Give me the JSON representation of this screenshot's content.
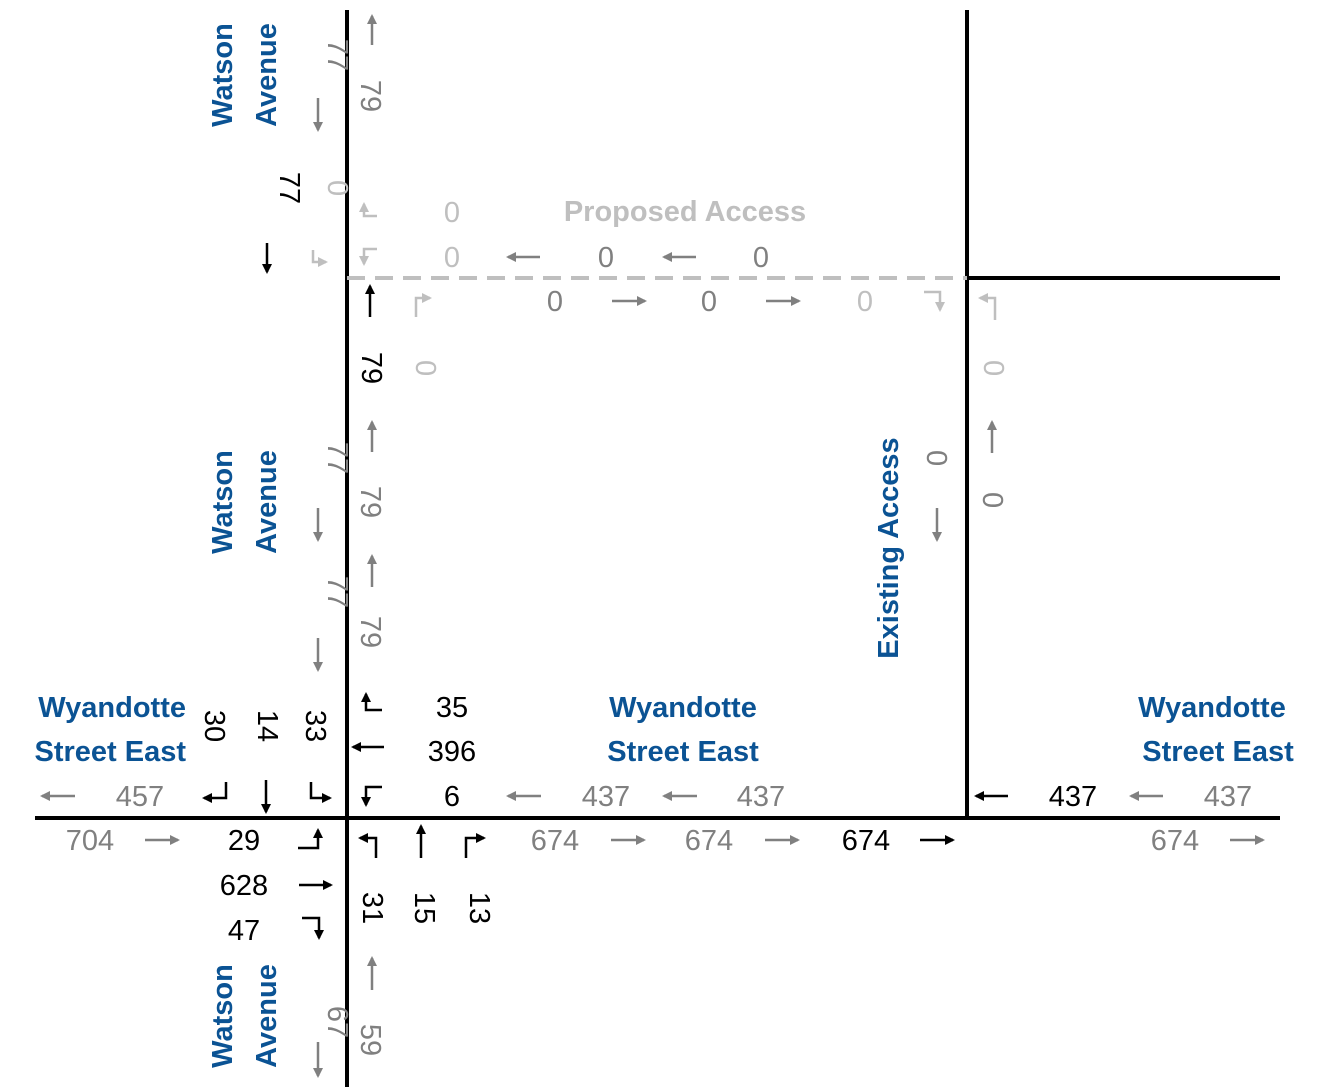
{
  "colors": {
    "road": "#000000",
    "street_label": "#0b5394",
    "existing_volume": "#000000",
    "link_volume": "#808080",
    "proposed": "#bfbfbf"
  },
  "streets": {
    "watson_top": [
      "Watson",
      "Avenue"
    ],
    "watson_middle": [
      "Watson",
      "Avenue"
    ],
    "watson_bottom": [
      "Watson",
      "Avenue"
    ],
    "wyandotte_left": [
      "Wyandotte",
      "Street East"
    ],
    "wyandotte_middle": [
      "Wyandotte",
      "Street East"
    ],
    "wyandotte_right": [
      "Wyandotte",
      "Street East"
    ],
    "proposed_access": "Proposed Access",
    "existing_access": "Existing Access"
  },
  "volumes": {
    "watson_north_link": {
      "southbound": "77",
      "northbound": "79"
    },
    "proposed_access_sb": {
      "through": "77",
      "right": "0"
    },
    "proposed_access_nb": {
      "through": "79",
      "left": "0"
    },
    "proposed_access_wb": {
      "right": "0",
      "left": "0"
    },
    "proposed_access_wb_link": [
      "0",
      "0"
    ],
    "proposed_access_eb_link": [
      "0",
      "0",
      "0"
    ],
    "existing_access_sb": {
      "right": "0"
    },
    "existing_access_wb": {
      "left": "0"
    },
    "existing_access_links": [
      "0",
      "0"
    ],
    "watson_middle_link_1": {
      "southbound": "77",
      "northbound": "79"
    },
    "watson_middle_link_2": {
      "southbound": "77",
      "northbound": "79"
    },
    "wyandotte_sb_approach": {
      "right": "30",
      "through": "14",
      "left": "33"
    },
    "wyandotte_wb_approach": {
      "right": "35",
      "through": "396",
      "left": "6"
    },
    "wyandotte_eb_approach": {
      "left": "29",
      "through": "628",
      "right": "47"
    },
    "wyandotte_nb_approach": {
      "left": "31",
      "through": "15",
      "right": "13"
    },
    "wyandotte_west_link": {
      "westbound": "457",
      "eastbound": "704"
    },
    "wyandotte_middle_link": {
      "westbound": [
        "437",
        "437"
      ],
      "eastbound": [
        "674",
        "674"
      ]
    },
    "wyandotte_at_existing": {
      "westbound": "437",
      "eastbound": "674"
    },
    "wyandotte_east_link": {
      "westbound": "437",
      "eastbound": "674"
    },
    "watson_south_link": {
      "southbound": "67",
      "northbound": "59"
    }
  }
}
